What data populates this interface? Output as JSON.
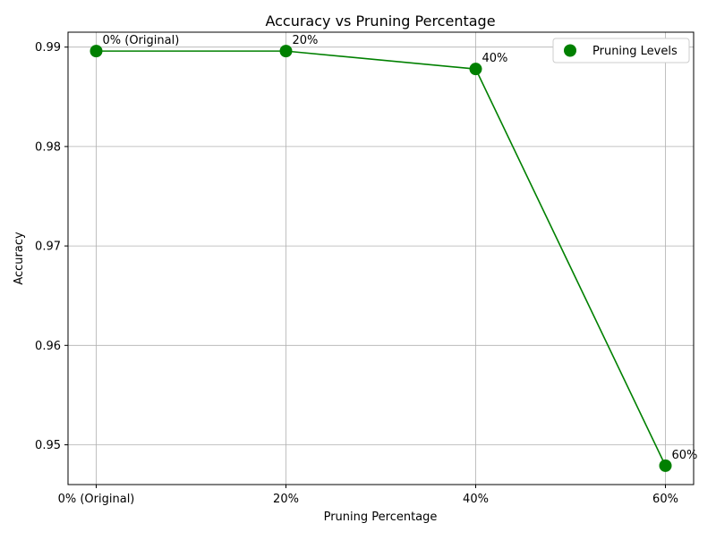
{
  "chart_data": {
    "type": "line",
    "title": "Accuracy vs Pruning Percentage",
    "xlabel": "Pruning Percentage",
    "ylabel": "Accuracy",
    "categories": [
      "0% (Original)",
      "20%",
      "40%",
      "60%"
    ],
    "series": [
      {
        "name": "Pruning Levels",
        "values": [
          0.9896,
          0.9896,
          0.9878,
          0.9479
        ]
      }
    ],
    "annotations": [
      "0% (Original)",
      "20%",
      "40%",
      "60%"
    ],
    "y_ticks": [
      "0.95",
      "0.96",
      "0.97",
      "0.98",
      "0.99"
    ],
    "ylim": [
      0.946,
      0.9915
    ],
    "grid": true,
    "legend_position": "top-right",
    "line_color": "#008000",
    "marker_color": "#008000"
  }
}
